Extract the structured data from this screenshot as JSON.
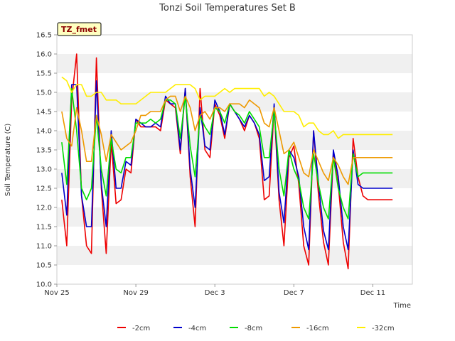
{
  "chart_data": {
    "type": "line",
    "title": "Tonzi Soil Temperatures Set B",
    "xlabel": "Time",
    "ylabel": "Soil Temperature (C)",
    "badge": "TZ_fmet",
    "xlim": [
      "Nov 25",
      "Dec 13"
    ],
    "ylim": [
      10.0,
      16.5
    ],
    "x_ticks": [
      "Nov 25",
      "Nov 29",
      "Dec 3",
      "Dec 7",
      "Dec 11"
    ],
    "y_ticks": [
      "10.0",
      "10.5",
      "11.0",
      "11.5",
      "12.0",
      "12.5",
      "13.0",
      "13.5",
      "14.0",
      "14.5",
      "15.0",
      "15.5",
      "16.0",
      "16.5"
    ],
    "legend_position": "bottom",
    "grid": "alternating horizontal bands",
    "x_days": [
      0.25,
      0.5,
      0.75,
      1.0,
      1.25,
      1.5,
      1.75,
      2.0,
      2.25,
      2.5,
      2.75,
      3.0,
      3.25,
      3.5,
      3.75,
      4.0,
      4.25,
      4.5,
      4.75,
      5.0,
      5.25,
      5.5,
      5.75,
      6.0,
      6.25,
      6.5,
      6.75,
      7.0,
      7.25,
      7.5,
      7.75,
      8.0,
      8.25,
      8.5,
      8.75,
      9.0,
      9.25,
      9.5,
      9.75,
      10.0,
      10.25,
      10.5,
      10.75,
      11.0,
      11.25,
      11.5,
      11.75,
      12.0,
      12.25,
      12.5,
      12.75,
      13.0,
      13.25,
      13.5,
      13.75,
      14.0,
      14.25,
      14.5,
      14.75,
      15.0,
      15.25,
      15.5,
      15.75,
      16.0,
      16.25,
      16.5,
      16.75,
      17.0
    ],
    "series": [
      {
        "name": "-2cm",
        "color": "#ee0000",
        "values": [
          12.2,
          11.0,
          14.8,
          16.0,
          12.3,
          11.0,
          10.8,
          15.9,
          12.5,
          10.8,
          13.7,
          12.1,
          12.2,
          13.0,
          12.9,
          14.3,
          14.1,
          14.1,
          14.1,
          14.1,
          14.0,
          14.8,
          14.7,
          14.6,
          13.4,
          15.1,
          12.8,
          11.5,
          15.1,
          13.5,
          13.3,
          14.7,
          14.4,
          13.8,
          14.7,
          14.5,
          14.3,
          14.0,
          14.4,
          14.2,
          13.8,
          12.2,
          12.3,
          14.6,
          12.2,
          11.0,
          13.3,
          13.6,
          12.6,
          11.0,
          10.5,
          14.0,
          12.3,
          11.1,
          10.5,
          13.4,
          12.6,
          11.1,
          10.4,
          13.8,
          12.8,
          12.3,
          12.2,
          12.2,
          12.2,
          12.2,
          12.2,
          12.2
        ]
      },
      {
        "name": "-4cm",
        "color": "#0000cc",
        "values": [
          12.9,
          11.8,
          15.2,
          15.2,
          12.3,
          11.5,
          11.5,
          15.3,
          12.6,
          11.5,
          14.0,
          12.5,
          12.5,
          13.2,
          13.1,
          14.3,
          14.2,
          14.1,
          14.1,
          14.2,
          14.1,
          14.9,
          14.7,
          14.7,
          13.5,
          15.1,
          13.0,
          12.0,
          14.6,
          13.6,
          13.5,
          14.8,
          14.5,
          13.9,
          14.7,
          14.5,
          14.3,
          14.1,
          14.4,
          14.2,
          13.9,
          12.7,
          12.8,
          14.7,
          12.4,
          11.6,
          13.5,
          13.3,
          12.8,
          11.5,
          10.9,
          14.0,
          12.6,
          11.4,
          10.9,
          13.5,
          12.8,
          11.5,
          10.9,
          13.5,
          12.6,
          12.5,
          12.5,
          12.5,
          12.5,
          12.5,
          12.5,
          12.5
        ]
      },
      {
        "name": "-8cm",
        "color": "#00dd00",
        "values": [
          13.7,
          12.6,
          15.1,
          14.0,
          12.5,
          12.2,
          12.5,
          14.4,
          13.0,
          12.3,
          13.8,
          13.0,
          12.9,
          13.3,
          13.3,
          14.2,
          14.2,
          14.2,
          14.3,
          14.2,
          14.3,
          14.8,
          14.8,
          14.7,
          13.8,
          14.9,
          13.6,
          12.8,
          14.4,
          14.1,
          13.9,
          14.6,
          14.5,
          14.2,
          14.7,
          14.5,
          14.4,
          14.2,
          14.5,
          14.3,
          14.1,
          13.3,
          13.3,
          14.5,
          13.0,
          12.3,
          13.5,
          13.0,
          12.7,
          12.0,
          11.7,
          13.4,
          12.6,
          12.0,
          11.7,
          13.3,
          12.5,
          12.0,
          11.7,
          13.4,
          12.8,
          12.9,
          12.9,
          12.9,
          12.9,
          12.9,
          12.9,
          12.9
        ]
      },
      {
        "name": "-16cm",
        "color": "#ee9900",
        "values": [
          14.5,
          13.8,
          13.6,
          14.6,
          14.0,
          13.2,
          13.2,
          14.4,
          13.9,
          13.2,
          13.9,
          13.7,
          13.5,
          13.6,
          13.7,
          14.0,
          14.4,
          14.4,
          14.5,
          14.5,
          14.5,
          14.8,
          14.9,
          14.9,
          14.5,
          14.9,
          14.6,
          14.0,
          14.4,
          14.5,
          14.3,
          14.6,
          14.6,
          14.5,
          14.7,
          14.7,
          14.7,
          14.6,
          14.8,
          14.7,
          14.6,
          14.2,
          14.1,
          14.6,
          14.0,
          13.4,
          13.5,
          13.7,
          13.3,
          12.9,
          12.8,
          13.5,
          13.2,
          12.9,
          12.7,
          13.3,
          13.1,
          12.8,
          12.6,
          13.3,
          13.3,
          13.3,
          13.3,
          13.3,
          13.3,
          13.3,
          13.3,
          13.3
        ]
      },
      {
        "name": "-32cm",
        "color": "#ffee00",
        "values": [
          15.4,
          15.3,
          15.0,
          15.2,
          15.2,
          14.9,
          14.9,
          15.0,
          15.0,
          14.8,
          14.8,
          14.8,
          14.7,
          14.7,
          14.7,
          14.7,
          14.8,
          14.9,
          15.0,
          15.0,
          15.0,
          15.0,
          15.1,
          15.2,
          15.2,
          15.2,
          15.2,
          15.1,
          14.8,
          14.9,
          14.9,
          14.9,
          15.0,
          15.1,
          15.0,
          15.1,
          15.1,
          15.1,
          15.1,
          15.1,
          15.1,
          14.9,
          15.0,
          14.9,
          14.7,
          14.5,
          14.5,
          14.5,
          14.4,
          14.1,
          14.2,
          14.2,
          14.0,
          13.9,
          13.9,
          14.0,
          13.8,
          13.9,
          13.9,
          13.9,
          13.9,
          13.9,
          13.9,
          13.9,
          13.9,
          13.9,
          13.9,
          13.9
        ]
      }
    ]
  }
}
